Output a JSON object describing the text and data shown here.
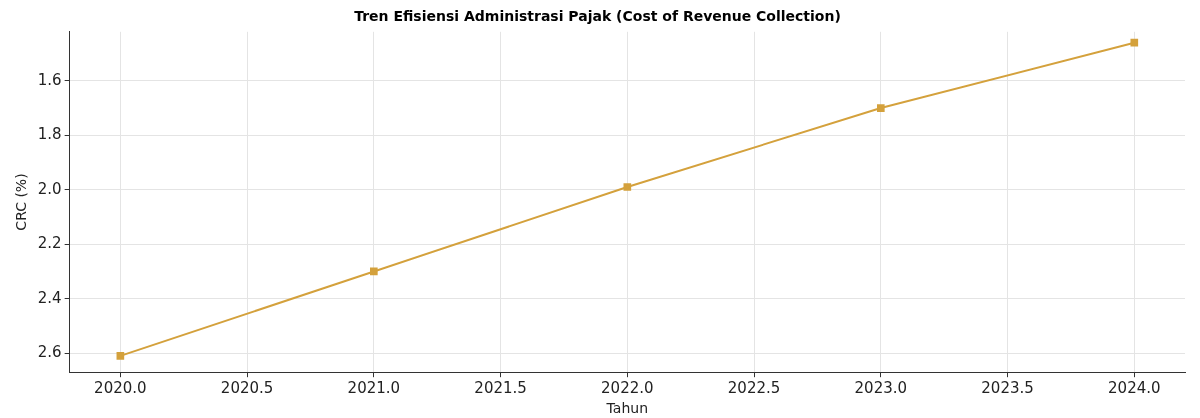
{
  "chart_data": {
    "type": "line",
    "title": "Tren Efisiensi Administrasi Pajak (Cost of Revenue Collection)",
    "xlabel": "Tahun",
    "ylabel": "CRC (%)",
    "x": [
      2020,
      2021,
      2022,
      2023,
      2024
    ],
    "series": [
      {
        "color": "#d4a13c",
        "values": [
          2.61,
          2.3,
          1.99,
          1.7,
          1.46
        ]
      }
    ],
    "xlim": [
      2019.8,
      2024.2
    ],
    "xticks": [
      {
        "value": 2020,
        "label": "2020.0"
      },
      {
        "value": 2020.5,
        "label": "2020.5"
      },
      {
        "value": 2021,
        "label": "2021.0"
      },
      {
        "value": 2021.5,
        "label": "2021.5"
      },
      {
        "value": 2022,
        "label": "2022.0"
      },
      {
        "value": 2022.5,
        "label": "2022.5"
      },
      {
        "value": 2023,
        "label": "2023.0"
      },
      {
        "value": 2023.5,
        "label": "2023.5"
      },
      {
        "value": 2024,
        "label": "2024.0"
      }
    ],
    "ylim": [
      2.67,
      1.42
    ],
    "yticks": [
      {
        "value": 1.6,
        "label": "1.6"
      },
      {
        "value": 1.8,
        "label": "1.8"
      },
      {
        "value": 2,
        "label": "2.0"
      },
      {
        "value": 2.2,
        "label": "2.2"
      },
      {
        "value": 2.4,
        "label": "2.4"
      },
      {
        "value": 2.6,
        "label": "2.6"
      }
    ],
    "grid": true,
    "marker": "square",
    "line_style": "solid",
    "legend": false
  }
}
